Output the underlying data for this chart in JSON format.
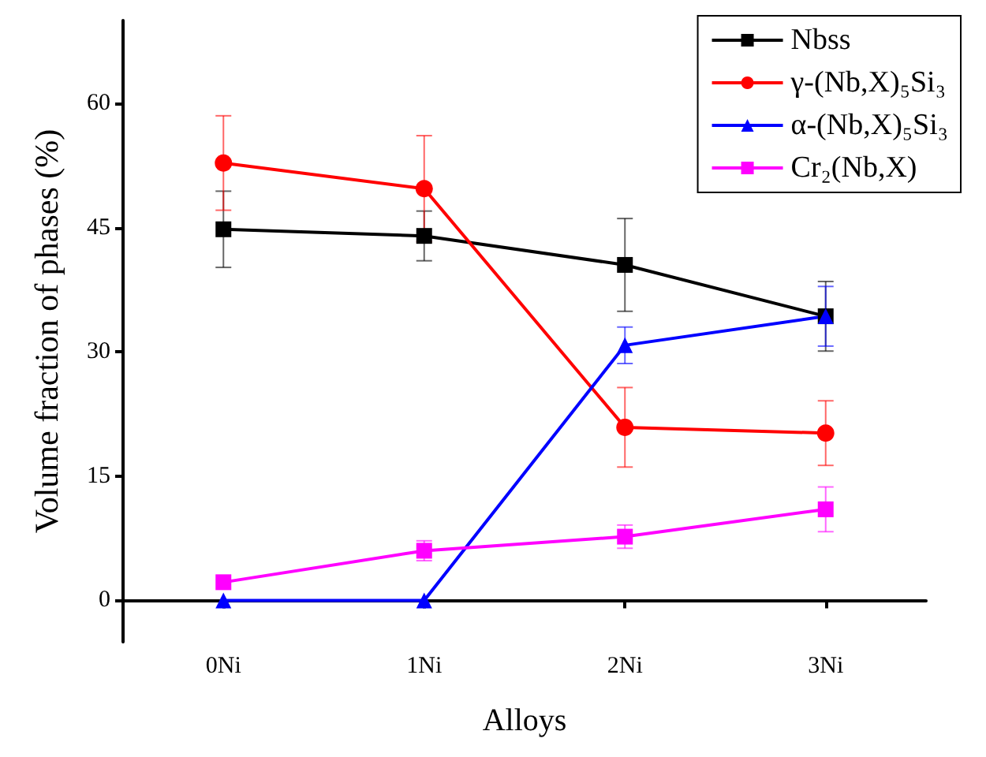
{
  "chart_data": {
    "type": "line",
    "xlabel": "Alloys",
    "ylabel": "Volume fraction of phases (%)",
    "categories": [
      "0Ni",
      "1Ni",
      "2Ni",
      "3Ni"
    ],
    "series": [
      {
        "name": "Nbss",
        "color": "#000000",
        "marker": "square",
        "values": [
          44.8,
          44,
          40.5,
          34.3
        ],
        "errors": [
          4.6,
          3,
          5.6,
          4.2
        ]
      },
      {
        "name": "γ-(Nb,X)₅Si₃",
        "color": "#ff0000",
        "marker": "circle",
        "values": [
          52.8,
          49.7,
          20.9,
          20.2
        ],
        "errors": [
          5.7,
          6.4,
          4.8,
          3.9
        ]
      },
      {
        "name": "α-(Nb,X)₅Si₃",
        "color": "#0000ff",
        "marker": "triangle",
        "values": [
          0,
          0,
          30.8,
          34.3
        ],
        "errors": [
          null,
          null,
          2.2,
          3.6
        ]
      },
      {
        "name": "Cr₂(Nb,X)",
        "color": "#ff00ff",
        "marker": "square",
        "values": [
          2.2,
          6.0,
          7.7,
          11.0
        ],
        "errors": [
          null,
          1.2,
          1.4,
          2.7
        ]
      }
    ],
    "ylim": [
      -5,
      70
    ],
    "yticks": [
      0,
      15,
      30,
      45,
      60
    ],
    "grid": false,
    "legend": "top right"
  }
}
